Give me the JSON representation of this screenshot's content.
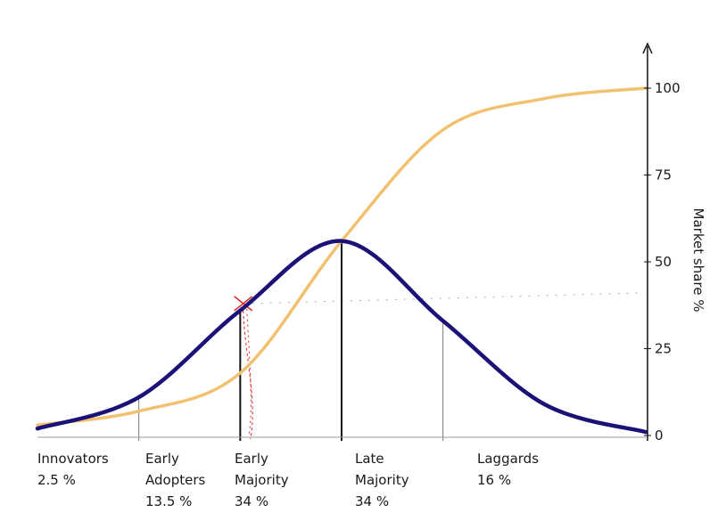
{
  "chart_data": {
    "type": "line",
    "title": "",
    "xlabel": "",
    "ylabel": "Market share %",
    "ylim": [
      0,
      100
    ],
    "yticks": [
      0,
      25,
      50,
      75,
      100
    ],
    "grid": false,
    "x_domain": [
      -3,
      3
    ],
    "series": [
      {
        "kind": "adoption-curve",
        "color": "#1b1277",
        "description_points": [
          {
            "x": -3.0,
            "y": 2
          },
          {
            "x": -2.0,
            "y": 11
          },
          {
            "x": -1.0,
            "y": 36
          },
          {
            "x": 0.0,
            "y": 56
          },
          {
            "x": 1.0,
            "y": 33
          },
          {
            "x": 2.0,
            "y": 9
          },
          {
            "x": 3.0,
            "y": 1
          }
        ]
      },
      {
        "kind": "cumulative-market-share",
        "color": "#f2c170",
        "description_points": [
          {
            "x": -3.0,
            "y": 3
          },
          {
            "x": -2.0,
            "y": 7
          },
          {
            "x": -1.0,
            "y": 18
          },
          {
            "x": 0.0,
            "y": 56
          },
          {
            "x": 1.0,
            "y": 88
          },
          {
            "x": 2.0,
            "y": 97
          },
          {
            "x": 3.0,
            "y": 100
          }
        ]
      }
    ],
    "segments": [
      {
        "name": "Innovators",
        "name_line2": "",
        "share": "2.5 %",
        "boundary_x": -2
      },
      {
        "name": "Early",
        "name_line2": "Adopters",
        "share": "13.5 %",
        "boundary_x": -1
      },
      {
        "name": "Early",
        "name_line2": "Majority",
        "share": "34 %",
        "boundary_x": 0
      },
      {
        "name": "Late",
        "name_line2": "Majority",
        "share": "34 %",
        "boundary_x": 1
      },
      {
        "name": "Laggards",
        "name_line2": "",
        "share": "16 %",
        "boundary_x": null
      }
    ],
    "annotation": {
      "marker": "x",
      "color": "#e02020",
      "x": -0.97,
      "y": 38
    }
  }
}
